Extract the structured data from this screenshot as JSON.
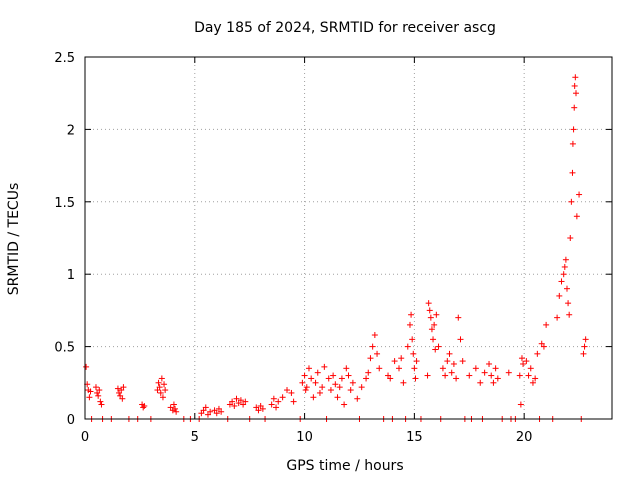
{
  "colors": {
    "marker": "#ff0000",
    "frame": "#000000",
    "grid": "#a0a0a0"
  },
  "chart_data": {
    "type": "scatter",
    "title": "Day 185 of 2024, SRMTID for receiver ascg",
    "xlabel": "GPS time / hours",
    "ylabel": "SRMTID / TECUs",
    "xlim": [
      0,
      24
    ],
    "ylim": [
      0,
      2.5
    ],
    "xticks": [
      0,
      5,
      10,
      15,
      20
    ],
    "xtick_labels": [
      "0",
      "5",
      "10",
      "15",
      "20"
    ],
    "yticks": [
      0,
      0.5,
      1,
      1.5,
      2,
      2.5
    ],
    "ytick_labels": [
      "0",
      "0.5",
      "1",
      "1.5",
      "2",
      "2.5"
    ],
    "grid": true,
    "marker": "+",
    "series": [
      {
        "name": "SRMTID",
        "x": [
          0.05,
          0.1,
          0.15,
          0.2,
          0.25,
          0.5,
          0.55,
          0.6,
          0.65,
          0.7,
          0.75,
          1.5,
          1.55,
          1.6,
          1.65,
          1.7,
          1.75,
          2.6,
          2.65,
          2.7,
          3.3,
          3.35,
          3.4,
          3.45,
          3.5,
          3.55,
          3.6,
          3.65,
          3.9,
          4.0,
          4.05,
          4.1,
          4.15,
          5.3,
          5.4,
          5.5,
          5.6,
          5.7,
          5.9,
          6.0,
          6.1,
          6.2,
          6.6,
          6.7,
          6.8,
          6.9,
          7.0,
          7.1,
          7.2,
          7.3,
          7.8,
          7.9,
          8.0,
          8.1,
          8.5,
          8.6,
          8.7,
          8.8,
          9.0,
          9.2,
          9.4,
          9.5,
          9.9,
          10.0,
          10.05,
          10.1,
          10.2,
          10.3,
          10.4,
          10.5,
          10.6,
          10.7,
          10.8,
          10.9,
          11.1,
          11.2,
          11.3,
          11.4,
          11.5,
          11.6,
          11.7,
          11.8,
          11.9,
          12.0,
          12.1,
          12.2,
          12.4,
          12.6,
          12.8,
          12.9,
          13.0,
          13.1,
          13.2,
          13.3,
          13.4,
          13.8,
          13.9,
          14.1,
          14.3,
          14.4,
          14.5,
          14.7,
          14.8,
          14.85,
          14.9,
          14.95,
          15.0,
          15.05,
          15.1,
          15.6,
          15.65,
          15.7,
          15.75,
          15.8,
          15.85,
          15.9,
          15.95,
          16.0,
          16.1,
          16.3,
          16.4,
          16.5,
          16.6,
          16.7,
          16.8,
          16.9,
          17.0,
          17.1,
          17.2,
          17.5,
          17.8,
          18.0,
          18.2,
          18.4,
          18.5,
          18.6,
          18.7,
          18.8,
          19.3,
          19.8,
          19.85,
          19.9,
          19.95,
          20.1,
          20.2,
          20.3,
          20.4,
          20.5,
          20.6,
          20.8,
          20.9,
          21.0,
          21.5,
          21.6,
          21.7,
          21.8,
          21.85,
          21.9,
          21.95,
          22.0,
          22.05,
          22.1,
          22.15,
          22.2,
          22.22,
          22.25,
          22.28,
          22.3,
          22.33,
          22.36,
          22.4,
          22.5,
          22.7,
          22.75,
          22.8,
          0.3,
          0.8,
          1.2,
          2.0,
          2.4,
          3.0,
          4.5,
          4.8,
          5.2,
          6.5,
          7.5,
          8.2,
          9.8,
          11.0,
          12.5,
          13.6,
          14.0,
          14.6,
          15.3,
          16.2,
          17.3,
          17.6,
          18.1,
          19.0,
          19.4,
          19.6,
          20.7,
          21.3,
          22.6
        ],
        "y": [
          0.36,
          0.24,
          0.2,
          0.15,
          0.19,
          0.22,
          0.18,
          0.16,
          0.2,
          0.12,
          0.1,
          0.21,
          0.18,
          0.16,
          0.2,
          0.14,
          0.22,
          0.1,
          0.08,
          0.09,
          0.2,
          0.25,
          0.22,
          0.18,
          0.28,
          0.15,
          0.24,
          0.2,
          0.08,
          0.06,
          0.1,
          0.07,
          0.05,
          0.04,
          0.06,
          0.08,
          0.03,
          0.05,
          0.06,
          0.04,
          0.07,
          0.05,
          0.1,
          0.12,
          0.09,
          0.14,
          0.11,
          0.13,
          0.1,
          0.12,
          0.08,
          0.06,
          0.09,
          0.07,
          0.1,
          0.14,
          0.08,
          0.12,
          0.15,
          0.2,
          0.18,
          0.12,
          0.25,
          0.3,
          0.2,
          0.22,
          0.35,
          0.28,
          0.15,
          0.25,
          0.32,
          0.18,
          0.22,
          0.36,
          0.28,
          0.2,
          0.3,
          0.24,
          0.15,
          0.22,
          0.28,
          0.1,
          0.35,
          0.3,
          0.2,
          0.25,
          0.14,
          0.22,
          0.28,
          0.32,
          0.42,
          0.5,
          0.58,
          0.45,
          0.35,
          0.3,
          0.28,
          0.4,
          0.35,
          0.42,
          0.25,
          0.5,
          0.65,
          0.72,
          0.55,
          0.45,
          0.35,
          0.28,
          0.4,
          0.3,
          0.8,
          0.75,
          0.7,
          0.62,
          0.55,
          0.65,
          0.48,
          0.72,
          0.5,
          0.35,
          0.3,
          0.4,
          0.45,
          0.32,
          0.38,
          0.28,
          0.7,
          0.55,
          0.4,
          0.3,
          0.35,
          0.25,
          0.32,
          0.38,
          0.3,
          0.25,
          0.35,
          0.28,
          0.32,
          0.3,
          0.1,
          0.42,
          0.38,
          0.4,
          0.3,
          0.35,
          0.25,
          0.28,
          0.45,
          0.52,
          0.5,
          0.65,
          0.7,
          0.85,
          0.95,
          1.0,
          1.05,
          1.1,
          0.9,
          0.8,
          0.72,
          1.25,
          1.5,
          1.7,
          1.9,
          2.0,
          2.15,
          2.3,
          2.36,
          2.25,
          1.4,
          1.55,
          0.45,
          0.5,
          0.55,
          0,
          0,
          0,
          0,
          0,
          0,
          0,
          0,
          0,
          0,
          0,
          0,
          0,
          0,
          0,
          0,
          0,
          0,
          0,
          0,
          0,
          0,
          0,
          0,
          0,
          0,
          0,
          0,
          0
        ]
      }
    ]
  }
}
